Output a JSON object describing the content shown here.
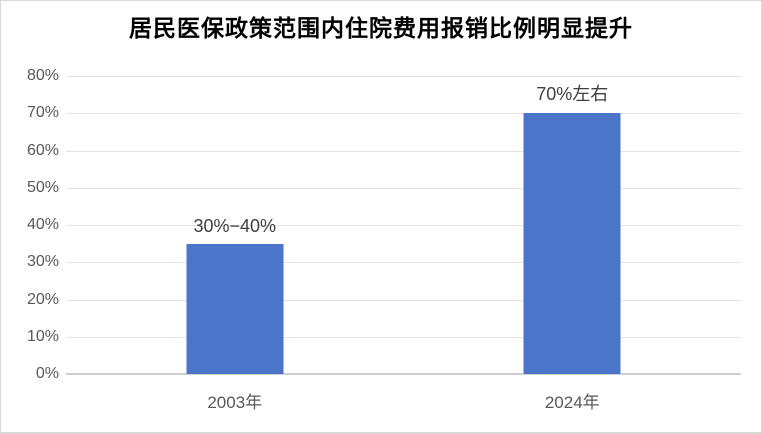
{
  "title": "居民医保政策范围内住院费用报销比例明显提升",
  "colors": {
    "bar": "#4a75c8",
    "gridline": "#e3e3e3",
    "axis_line": "#cfcfcf",
    "axis_label_text": "#595959",
    "data_label_text": "#3f3f3f",
    "title_text": "#000000",
    "background": "#ffffff",
    "frame_border": "#d9d9d9"
  },
  "chart_data": {
    "type": "bar",
    "title": "居民医保政策范围内住院费用报销比例明显提升",
    "categories": [
      "2003年",
      "2024年"
    ],
    "values": [
      35,
      70
    ],
    "data_labels": [
      "30%−40%",
      "70%左右"
    ],
    "yticks": [
      0,
      10,
      20,
      30,
      40,
      50,
      60,
      70,
      80
    ],
    "ytick_labels": [
      "0%",
      "10%",
      "20%",
      "30%",
      "40%",
      "50%",
      "60%",
      "70%",
      "80%"
    ],
    "ylim": [
      0,
      80
    ],
    "xlabel": "",
    "ylabel": "",
    "grid": true,
    "legend": false,
    "bar_color": "#4a75c8"
  }
}
